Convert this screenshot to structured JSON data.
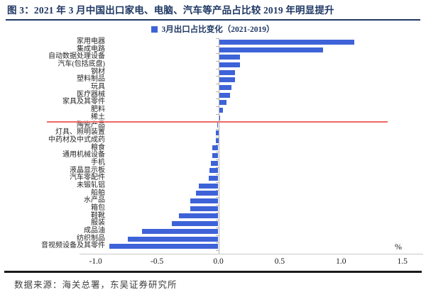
{
  "figure": {
    "title": "图 3：2021 年 3 月中国出口家电、电脑、汽车等产品占比较 2019 年明显提升",
    "source": "数据来源：海关总署，东吴证券研究所"
  },
  "chart_data": {
    "type": "bar",
    "orientation": "horizontal",
    "title": "",
    "legend_label": "3月出口占比变化（2021-2019）",
    "legend_position": "top",
    "unit_label": "%",
    "xlabel": "",
    "ylabel": "",
    "xlim": [
      -1.0,
      1.5
    ],
    "x_ticks": [
      -1.0,
      -0.5,
      0.0,
      0.5,
      1.0,
      1.5
    ],
    "grid": false,
    "bar_color": "#3e63d8",
    "axis_color": "#b3b3b3",
    "reference_line": {
      "after_category_index": 11,
      "color": "#ee6a63"
    },
    "categories": [
      "家用电器",
      "集成电路",
      "自动数据处理设备",
      "汽车(包括底盘)",
      "钢材",
      "塑料制品",
      "玩具",
      "医疗器械",
      "家具及其零件",
      "肥料",
      "稀土",
      "陶瓷产品",
      "灯具、照明装置",
      "中药材及中式成药",
      "粮食",
      "通用机械设备",
      "手机",
      "液晶显示板",
      "汽车零配件",
      "未锻轧铝",
      "船舶",
      "水产品",
      "箱包",
      "鞋靴",
      "服装",
      "成品油",
      "纺织制品",
      "音视频设备及其零件"
    ],
    "values": [
      1.1,
      0.85,
      0.17,
      0.17,
      0.13,
      0.13,
      0.1,
      0.09,
      0.06,
      0.03,
      0.01,
      -0.01,
      -0.02,
      -0.02,
      -0.05,
      -0.05,
      -0.06,
      -0.07,
      -0.08,
      -0.16,
      -0.18,
      -0.23,
      -0.23,
      -0.32,
      -0.38,
      -0.62,
      -0.74,
      -0.89
    ]
  }
}
